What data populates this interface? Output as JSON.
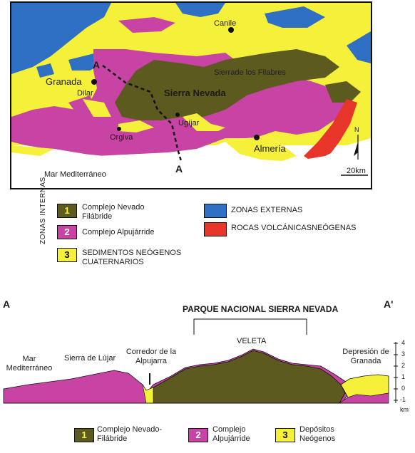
{
  "map": {
    "places": {
      "canile": "Canile",
      "sierra_filabres": "Sierrade los Filabres",
      "granada": "Granada",
      "dilar": "Dilar",
      "sierra_nevada": "Sierra Nevada",
      "ugijar": "Ugíjar",
      "orgiva": "Orgiva",
      "almeria": "Almería",
      "mar": "Mar Mediterráneo"
    },
    "section_start": "A",
    "section_end": "A",
    "north": "N",
    "scale": "20km"
  },
  "legend_map": {
    "group_label": "ZONAS INTERNAS",
    "items": [
      {
        "num": "1",
        "label": "Complejo Nevado Filábride",
        "color": "#5c5a1e"
      },
      {
        "num": "2",
        "label": "Complejo Alpujárride",
        "color": "#c844a4"
      },
      {
        "num": "3",
        "label": "SEDIMENTOS NEÓGENOS CUATERNARIOS",
        "color": "#f5f03a"
      }
    ],
    "extra": [
      {
        "label": "ZONAS EXTERNAS",
        "color": "#2f6fc4"
      },
      {
        "label": "ROCAS VOLCÁNICASNEÓGENAS",
        "color": "#e8352a"
      }
    ]
  },
  "section": {
    "left": "A",
    "right": "A'",
    "park": "PARQUE NACIONAL SIERRA NEVADA",
    "veleta": "VELETA",
    "mar": "Mar Mediterráneo",
    "lujar": "Sierra de Lújar",
    "corredor": "Corredor de la Alpujarra",
    "depresion": "Depresión de Granada",
    "axis_ticks": [
      "4",
      "3",
      "2",
      "1",
      "0",
      "-1"
    ],
    "axis_unit": "km"
  },
  "legend_section": [
    {
      "num": "1",
      "label": "Complejo Nevado-Filábride",
      "color": "#5c5a1e"
    },
    {
      "num": "2",
      "label": "Complejo Alpujárride",
      "color": "#c844a4"
    },
    {
      "num": "3",
      "label": "Depósitos Neógenos",
      "color": "#f5f03a"
    }
  ]
}
